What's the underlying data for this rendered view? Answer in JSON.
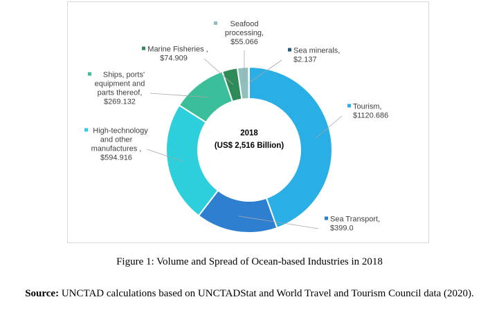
{
  "chart_data": {
    "type": "pie",
    "variant": "donut",
    "center_label": [
      "2018",
      "(US$ 2,516 Billion)"
    ],
    "slices": [
      {
        "name": "Tourism",
        "value": 1120.686,
        "color": "#2aaee6",
        "label": [
          "Tourism,",
          "$1120.686"
        ]
      },
      {
        "name": "Sea Transport",
        "value": 399.0,
        "color": "#2e7fcf",
        "label": [
          "Sea Transport,",
          "$399.0"
        ]
      },
      {
        "name": "High-technology and other manufactures",
        "value": 594.916,
        "color": "#2ecfdc",
        "label": [
          "High-technology",
          "and other",
          "manufactures ,",
          "$594.916"
        ]
      },
      {
        "name": "Ships, ports' equipment and parts thereof",
        "value": 269.132,
        "color": "#3bbf9a",
        "label": [
          "Ships, ports'",
          "equipment and",
          "parts thereof,",
          "$269.132"
        ]
      },
      {
        "name": "Marine Fisheries",
        "value": 74.909,
        "color": "#2e8b57",
        "label": [
          "Marine Fisheries ,",
          "$74.909"
        ]
      },
      {
        "name": "Seafood processing",
        "value": 55.066,
        "color": "#8fbfbf",
        "label": [
          "Seafood",
          "processing,",
          "$55.066"
        ]
      },
      {
        "name": "Sea minerals",
        "value": 2.137,
        "color": "#1f5f7a",
        "label": [
          "Sea minerals,",
          "$2.137"
        ]
      }
    ]
  },
  "caption": "Figure 1: Volume and Spread of Ocean-based Industries in 2018",
  "source": {
    "prefix": "Source:",
    "text": " UNCTAD calculations based on UNCTADStat and World Travel and Tourism Council data (2020)."
  }
}
